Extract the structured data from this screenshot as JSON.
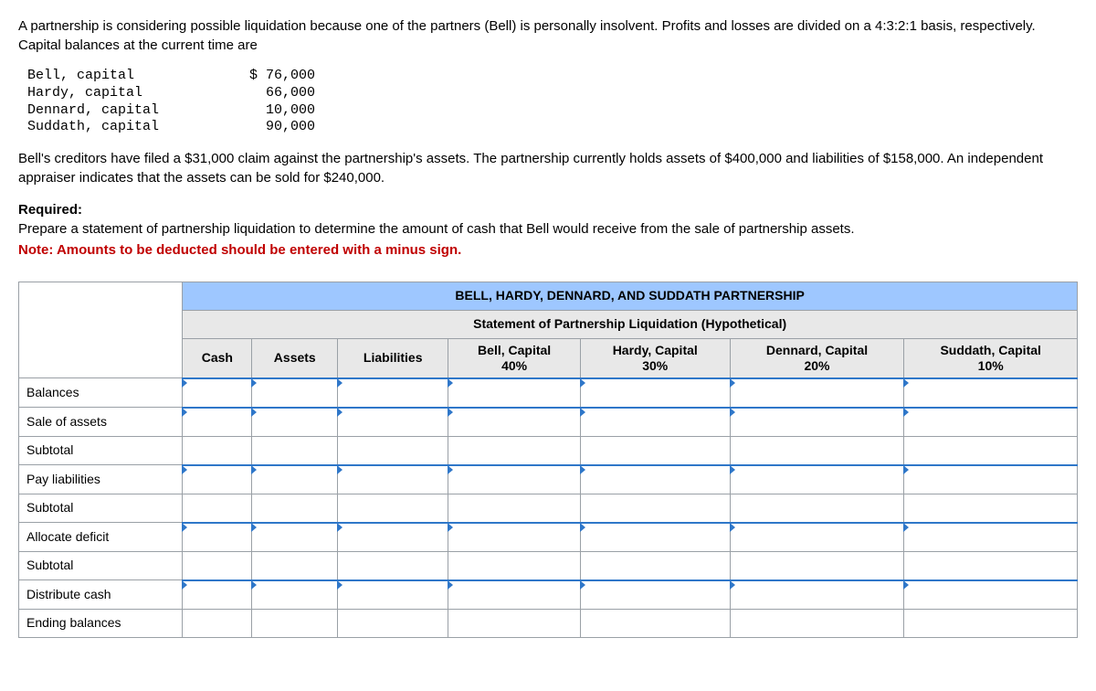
{
  "intro": "A partnership is considering possible liquidation because one of the partners (Bell) is personally insolvent. Profits and losses are divided on a 4:3:2:1 basis, respectively. Capital balances at the current time are",
  "capital_lines": [
    {
      "label": "Bell, capital",
      "amount": "$ 76,000"
    },
    {
      "label": "Hardy, capital",
      "amount": "66,000"
    },
    {
      "label": "Dennard, capital",
      "amount": "10,000"
    },
    {
      "label": "Suddath, capital",
      "amount": "90,000"
    }
  ],
  "middle_para": "Bell's creditors have filed a $31,000 claim against the partnership's assets. The partnership currently holds assets of $400,000 and liabilities of $158,000. An independent appraiser indicates that the assets can be sold for $240,000.",
  "required_label": "Required:",
  "required_text": "Prepare a statement of partnership liquidation to determine the amount of cash that Bell would receive from the sale of partnership assets.",
  "note": "Note: Amounts to be deducted should be entered with a minus sign.",
  "table": {
    "title": "BELL, HARDY, DENNARD, AND SUDDATH PARTNERSHIP",
    "subtitle": "Statement of Partnership Liquidation (Hypothetical)",
    "columns": [
      "Cash",
      "Assets",
      "Liabilities",
      "Bell, Capital 40%",
      "Hardy, Capital 30%",
      "Dennard, Capital 20%",
      "Suddath, Capital 10%"
    ],
    "rows": [
      {
        "label": "Balances",
        "indent": false,
        "active": true
      },
      {
        "label": "Sale of assets",
        "indent": false,
        "active": true
      },
      {
        "label": "Subtotal",
        "indent": true,
        "active": false
      },
      {
        "label": "Pay liabilities",
        "indent": false,
        "active": true
      },
      {
        "label": "Subtotal",
        "indent": true,
        "active": false
      },
      {
        "label": "Allocate deficit",
        "indent": false,
        "active": true
      },
      {
        "label": "Subtotal",
        "indent": true,
        "active": false
      },
      {
        "label": "Distribute cash",
        "indent": false,
        "active": true
      },
      {
        "label": "Ending balances",
        "indent": false,
        "active": false
      }
    ]
  }
}
